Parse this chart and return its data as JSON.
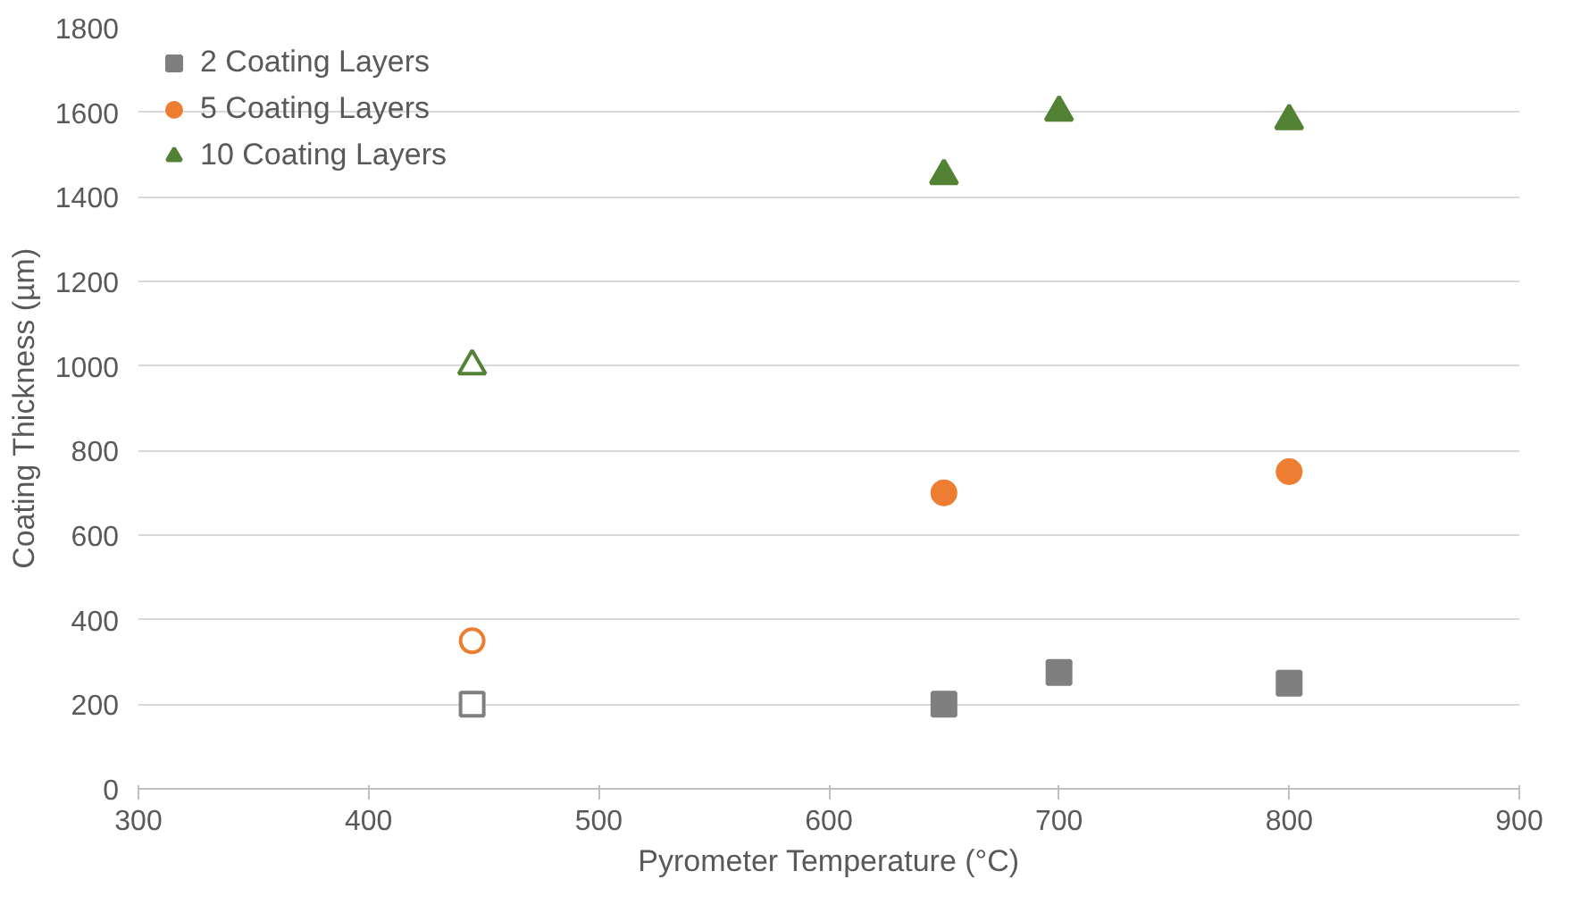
{
  "chart_data": {
    "type": "scatter",
    "xlabel": "Pyrometer Temperature (°C)",
    "ylabel": "Coating Thickness (µm)",
    "xlim": [
      300,
      900
    ],
    "xticks": [
      300,
      400,
      500,
      600,
      700,
      800,
      900
    ],
    "ylim": [
      0,
      1800
    ],
    "yticks": [
      0,
      200,
      400,
      600,
      800,
      1000,
      1200,
      1400,
      1600,
      1800
    ],
    "grid": "y",
    "legend": "top left",
    "series": [
      {
        "name": "2 Coating Layers",
        "color": "#7f7f7f",
        "marker": "square",
        "x": [
          445,
          650,
          700,
          800
        ],
        "values": [
          200,
          200,
          275,
          250
        ],
        "colors": [
          "#ffffff",
          "#7f7f7f",
          "#7f7f7f",
          "#7f7f7f"
        ]
      },
      {
        "name": "5 Coating Layers",
        "color": "#ed7d31",
        "marker": "circle",
        "x": [
          445,
          650,
          800
        ],
        "values": [
          350,
          700,
          750
        ],
        "colors": [
          "#ffffff",
          "#ed7d31",
          "#ed7d31"
        ]
      },
      {
        "name": "10 Coating Layers",
        "color": "#548235",
        "marker": "triangle",
        "x": [
          445,
          650,
          700,
          800
        ],
        "values": [
          1000,
          1450,
          1600,
          1580
        ],
        "colors": [
          "#ffffff",
          "#548235",
          "#548235",
          "#548235"
        ]
      }
    ]
  }
}
